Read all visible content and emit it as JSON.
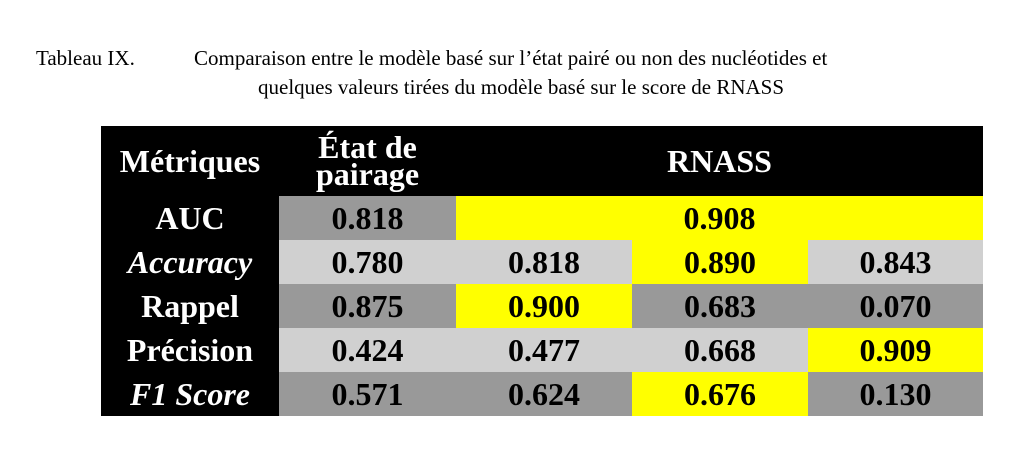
{
  "caption": {
    "label": "Tableau IX.",
    "line1": "Comparaison entre le modèle basé sur l’état pairé ou non des nucléotides et",
    "line2": "quelques valeurs tirées du modèle basé sur le score de RNASS"
  },
  "table": {
    "header": {
      "metric": "Métriques",
      "etat_line1": "État de",
      "etat_line2": "pairage",
      "rnass": "RNASS"
    },
    "rows": {
      "auc": {
        "label": "AUC",
        "etat": "0.818",
        "rnass": "0.908"
      },
      "accuracy": {
        "label": "Accuracy",
        "values": [
          "0.780",
          "0.818",
          "0.890",
          "0.843"
        ]
      },
      "rappel": {
        "label": "Rappel",
        "values": [
          "0.875",
          "0.900",
          "0.683",
          "0.070"
        ]
      },
      "precision": {
        "label": "Précision",
        "values": [
          "0.424",
          "0.477",
          "0.668",
          "0.909"
        ]
      },
      "f1": {
        "label": "F1 Score",
        "values": [
          "0.571",
          "0.624",
          "0.676",
          "0.130"
        ]
      }
    }
  },
  "colors": {
    "header_bg": "#000000",
    "dark_gray": "#999999",
    "light_gray": "#d0d0d0",
    "highlight": "#ffff00"
  }
}
